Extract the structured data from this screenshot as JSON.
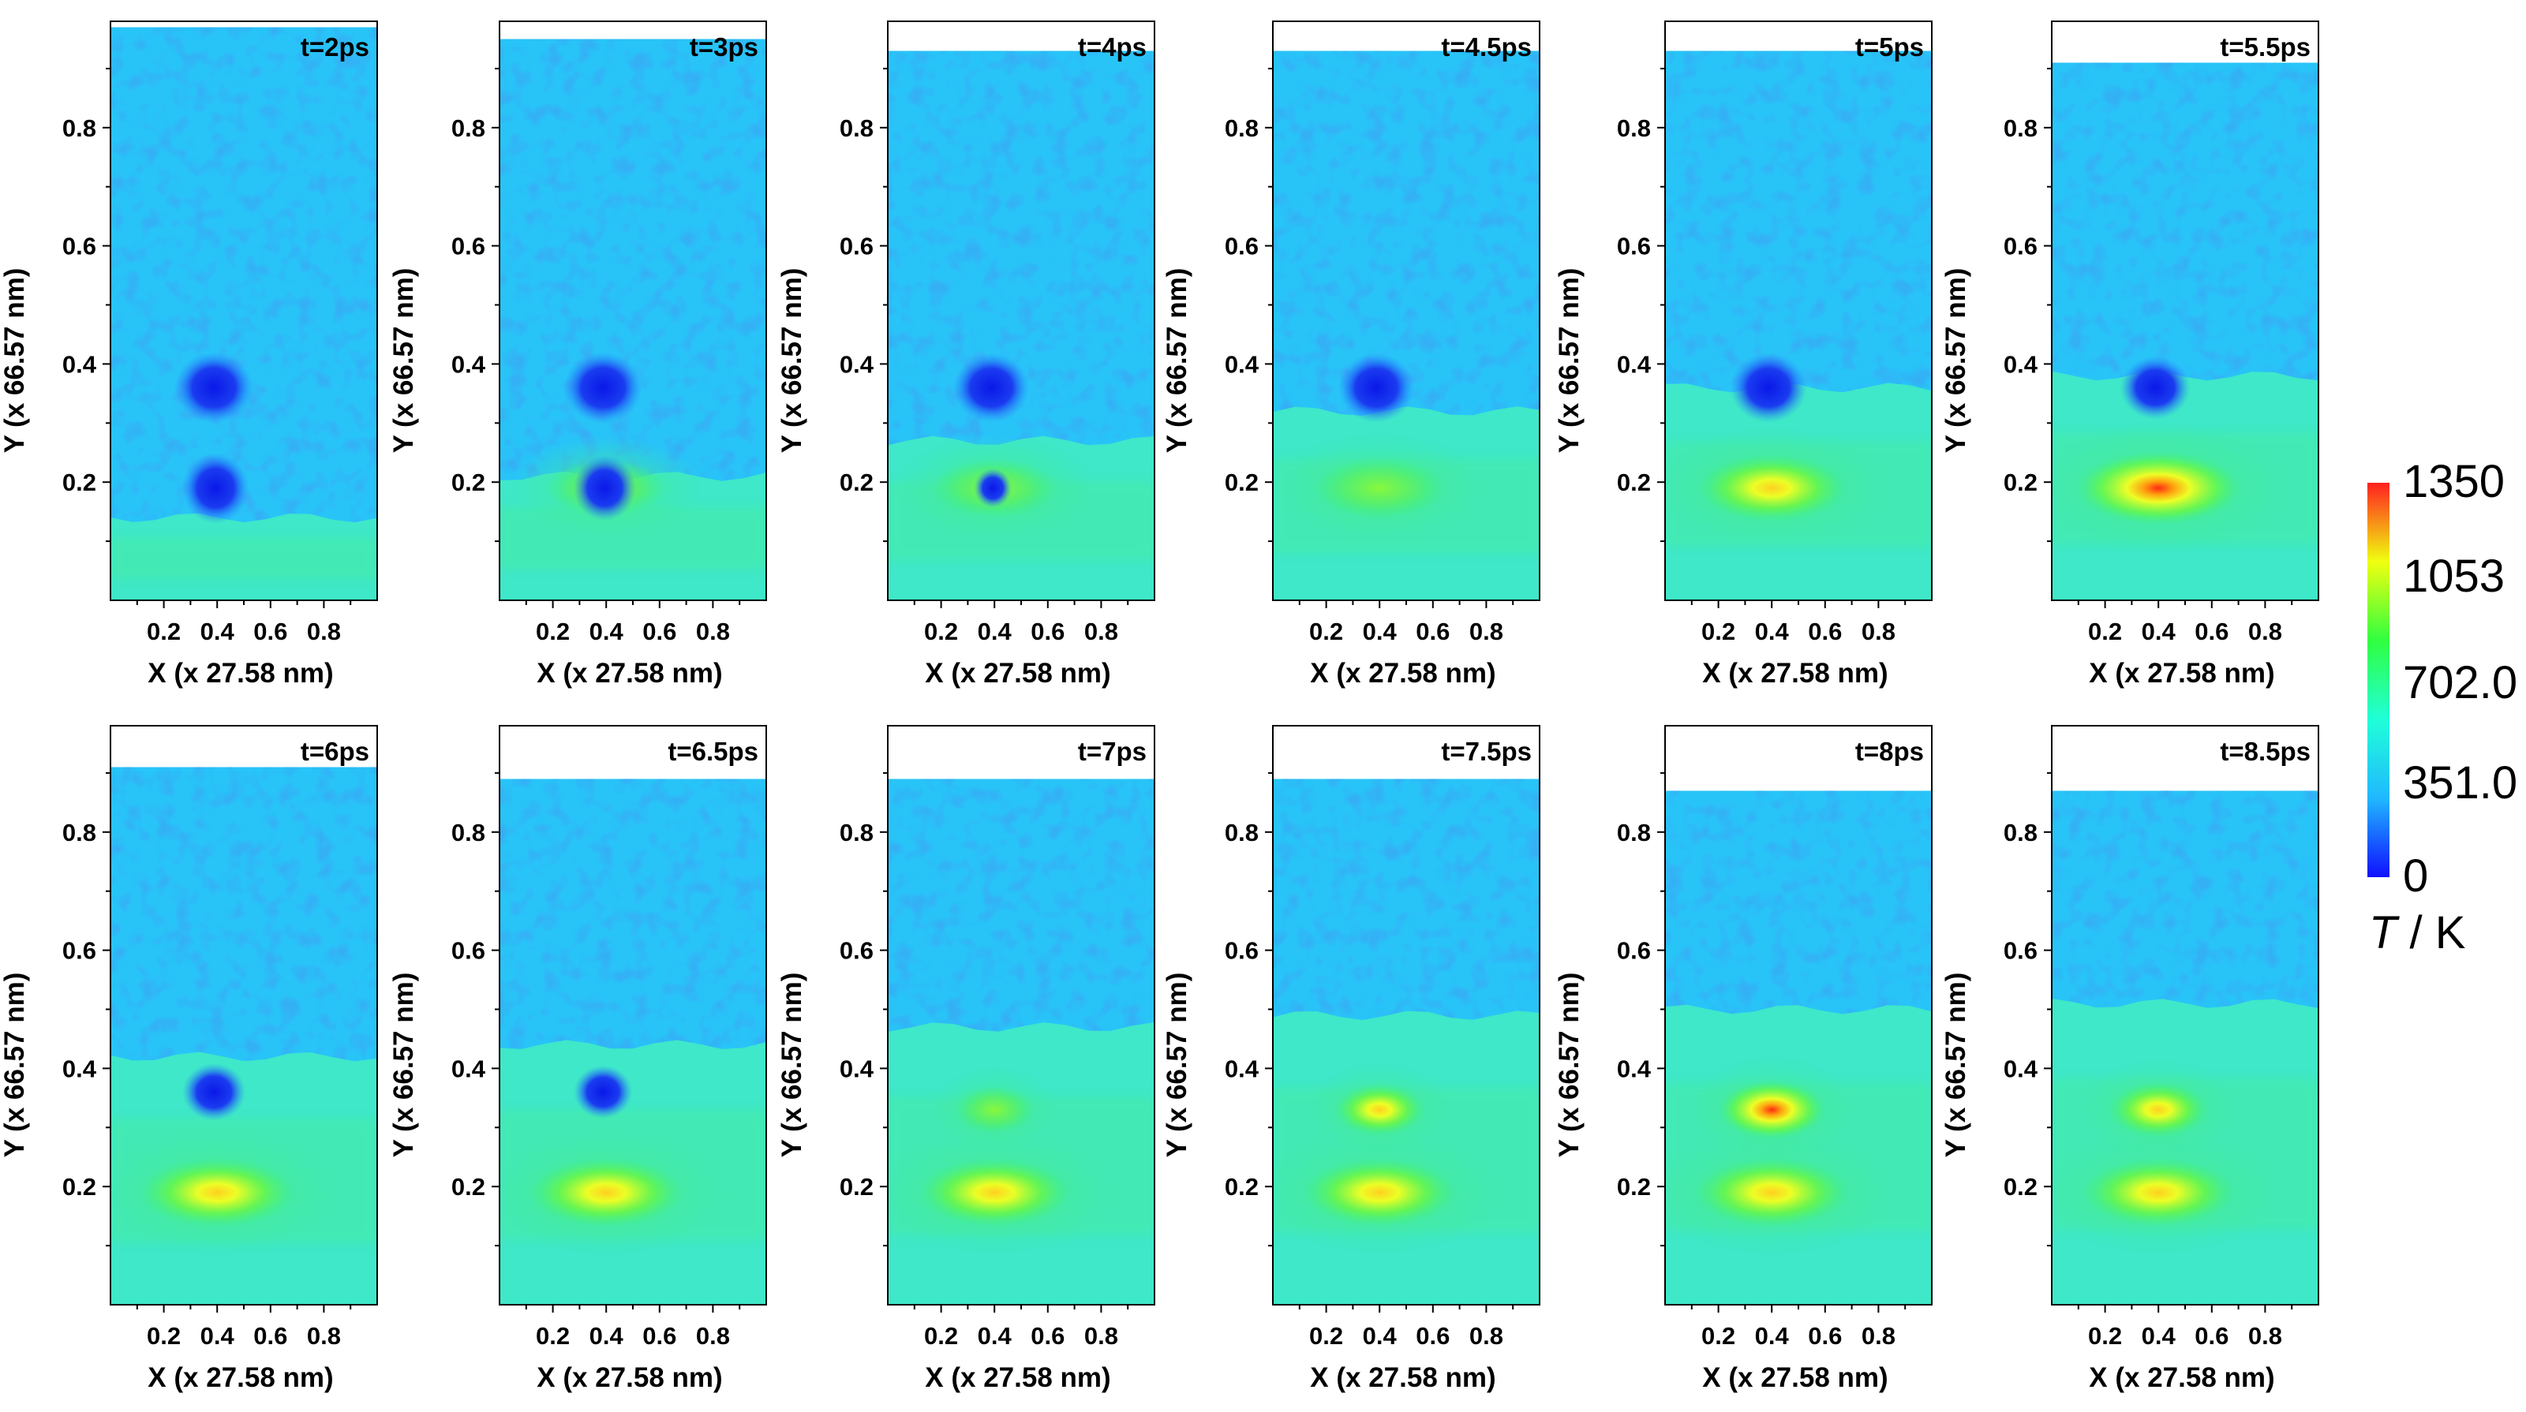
{
  "chart_data": {
    "type": "heatmap",
    "layout": "small multiples, 2 rows x 6 columns",
    "xlabel": "X (x 27.58 nm)",
    "ylabel": "Y (x 66.57 nm)",
    "x_ticks": [
      "0.2",
      "0.4",
      "0.6",
      "0.8"
    ],
    "y_ticks": [
      "0.2",
      "0.4",
      "0.6",
      "0.8"
    ],
    "xlim": [
      0,
      1.0
    ],
    "ylim": [
      0,
      0.98
    ],
    "colorbar": {
      "title_italic": "T",
      "title_rest": " / K",
      "labels": [
        "1350",
        "1053",
        "702.0",
        "351.0",
        "0"
      ],
      "min": 0,
      "max": 1350,
      "colors": [
        "#1010ff",
        "#20b8ff",
        "#20ffd8",
        "#30ff40",
        "#f0ff10",
        "#ff2020"
      ]
    },
    "panels": [
      {
        "label": "t=2ps",
        "top": 0.97,
        "front": 0.14,
        "hot_low": 0,
        "hot_high": 0,
        "void_low": 0.9,
        "void_high": 0.9
      },
      {
        "label": "t=3ps",
        "top": 0.95,
        "front": 0.21,
        "hot_low": 0.15,
        "hot_high": 0,
        "void_low": 0.8,
        "void_high": 0.9
      },
      {
        "label": "t=4ps",
        "top": 0.93,
        "front": 0.27,
        "hot_low": 0.25,
        "hot_high": 0,
        "void_low": 0.3,
        "void_high": 0.85
      },
      {
        "label": "t=4.5ps",
        "top": 0.93,
        "front": 0.32,
        "hot_low": 0.35,
        "hot_high": 0,
        "void_low": 0,
        "void_high": 0.85
      },
      {
        "label": "t=5ps",
        "top": 0.93,
        "front": 0.36,
        "hot_low": 0.65,
        "hot_high": 0,
        "void_low": 0,
        "void_high": 0.85
      },
      {
        "label": "t=5.5ps",
        "top": 0.91,
        "front": 0.38,
        "hot_low": 0.9,
        "hot_high": 0,
        "void_low": 0,
        "void_high": 0.7
      },
      {
        "label": "t=6ps",
        "top": 0.91,
        "front": 0.42,
        "hot_low": 0.75,
        "hot_high": 0,
        "void_low": 0,
        "void_high": 0.55
      },
      {
        "label": "t=6.5ps",
        "top": 0.89,
        "front": 0.44,
        "hot_low": 0.75,
        "hot_high": 0,
        "void_low": 0,
        "void_high": 0.45
      },
      {
        "label": "t=7ps",
        "top": 0.89,
        "front": 0.47,
        "hot_low": 0.7,
        "hot_high": 0.35,
        "void_low": 0,
        "void_high": 0
      },
      {
        "label": "t=7.5ps",
        "top": 0.89,
        "front": 0.49,
        "hot_low": 0.7,
        "hot_high": 0.6,
        "void_low": 0,
        "void_high": 0
      },
      {
        "label": "t=8ps",
        "top": 0.87,
        "front": 0.5,
        "hot_low": 0.75,
        "hot_high": 0.95,
        "void_low": 0,
        "void_high": 0
      },
      {
        "label": "t=8.5ps",
        "top": 0.87,
        "front": 0.51,
        "hot_low": 0.7,
        "hot_high": 0.8,
        "void_low": 0,
        "void_high": 0
      }
    ]
  }
}
